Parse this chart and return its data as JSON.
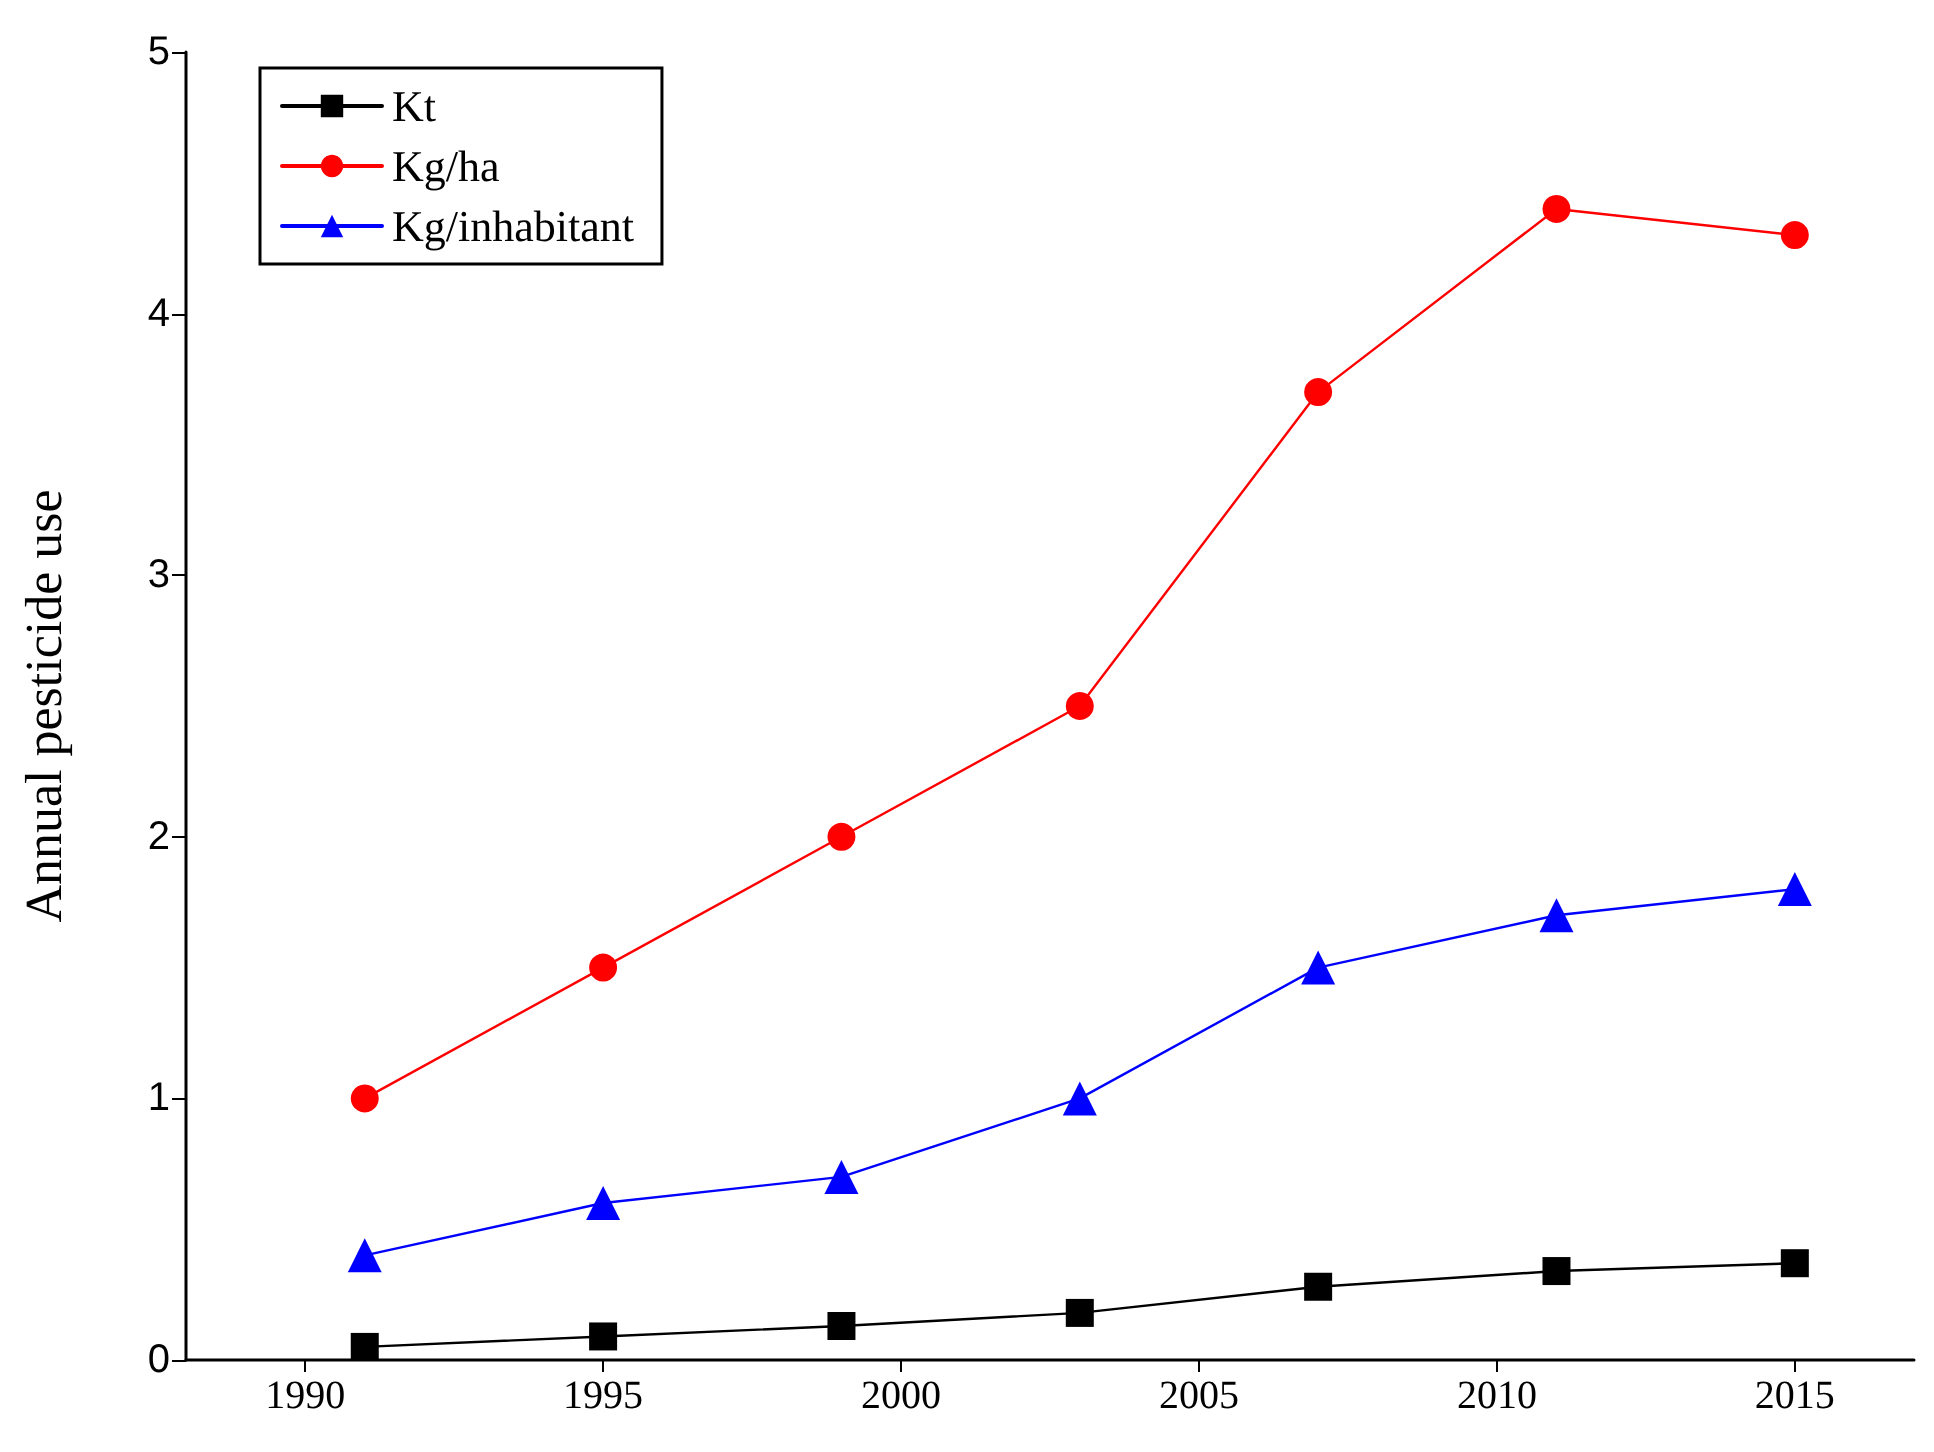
{
  "chart_data": {
    "type": "line",
    "ylabel": "Annual pesticide use",
    "x": [
      1991,
      1995,
      1999,
      2003,
      2007,
      2011,
      2015
    ],
    "series": [
      {
        "name": "Kt",
        "color": "#000000",
        "marker": "square",
        "values": [
          0.05,
          0.09,
          0.13,
          0.18,
          0.28,
          0.34,
          0.37
        ]
      },
      {
        "name": "Kg/ha",
        "color": "#ff0000",
        "marker": "circle",
        "values": [
          1,
          1.5,
          2,
          2.5,
          3.7,
          4.4,
          4.3
        ]
      },
      {
        "name": "Kg/inhabitant",
        "color": "#0000ff",
        "marker": "triangle",
        "values": [
          0.4,
          0.6,
          0.7,
          1,
          1.5,
          1.7,
          1.8
        ]
      }
    ],
    "xlim": [
      1988,
      2017
    ],
    "xticks": [
      1990,
      1995,
      2000,
      2005,
      2010,
      2015
    ],
    "ylim": [
      0,
      5
    ],
    "yticks": [
      0,
      1,
      2,
      3,
      4,
      5
    ],
    "grid": false,
    "legend": "top left",
    "line_style": "solid"
  }
}
